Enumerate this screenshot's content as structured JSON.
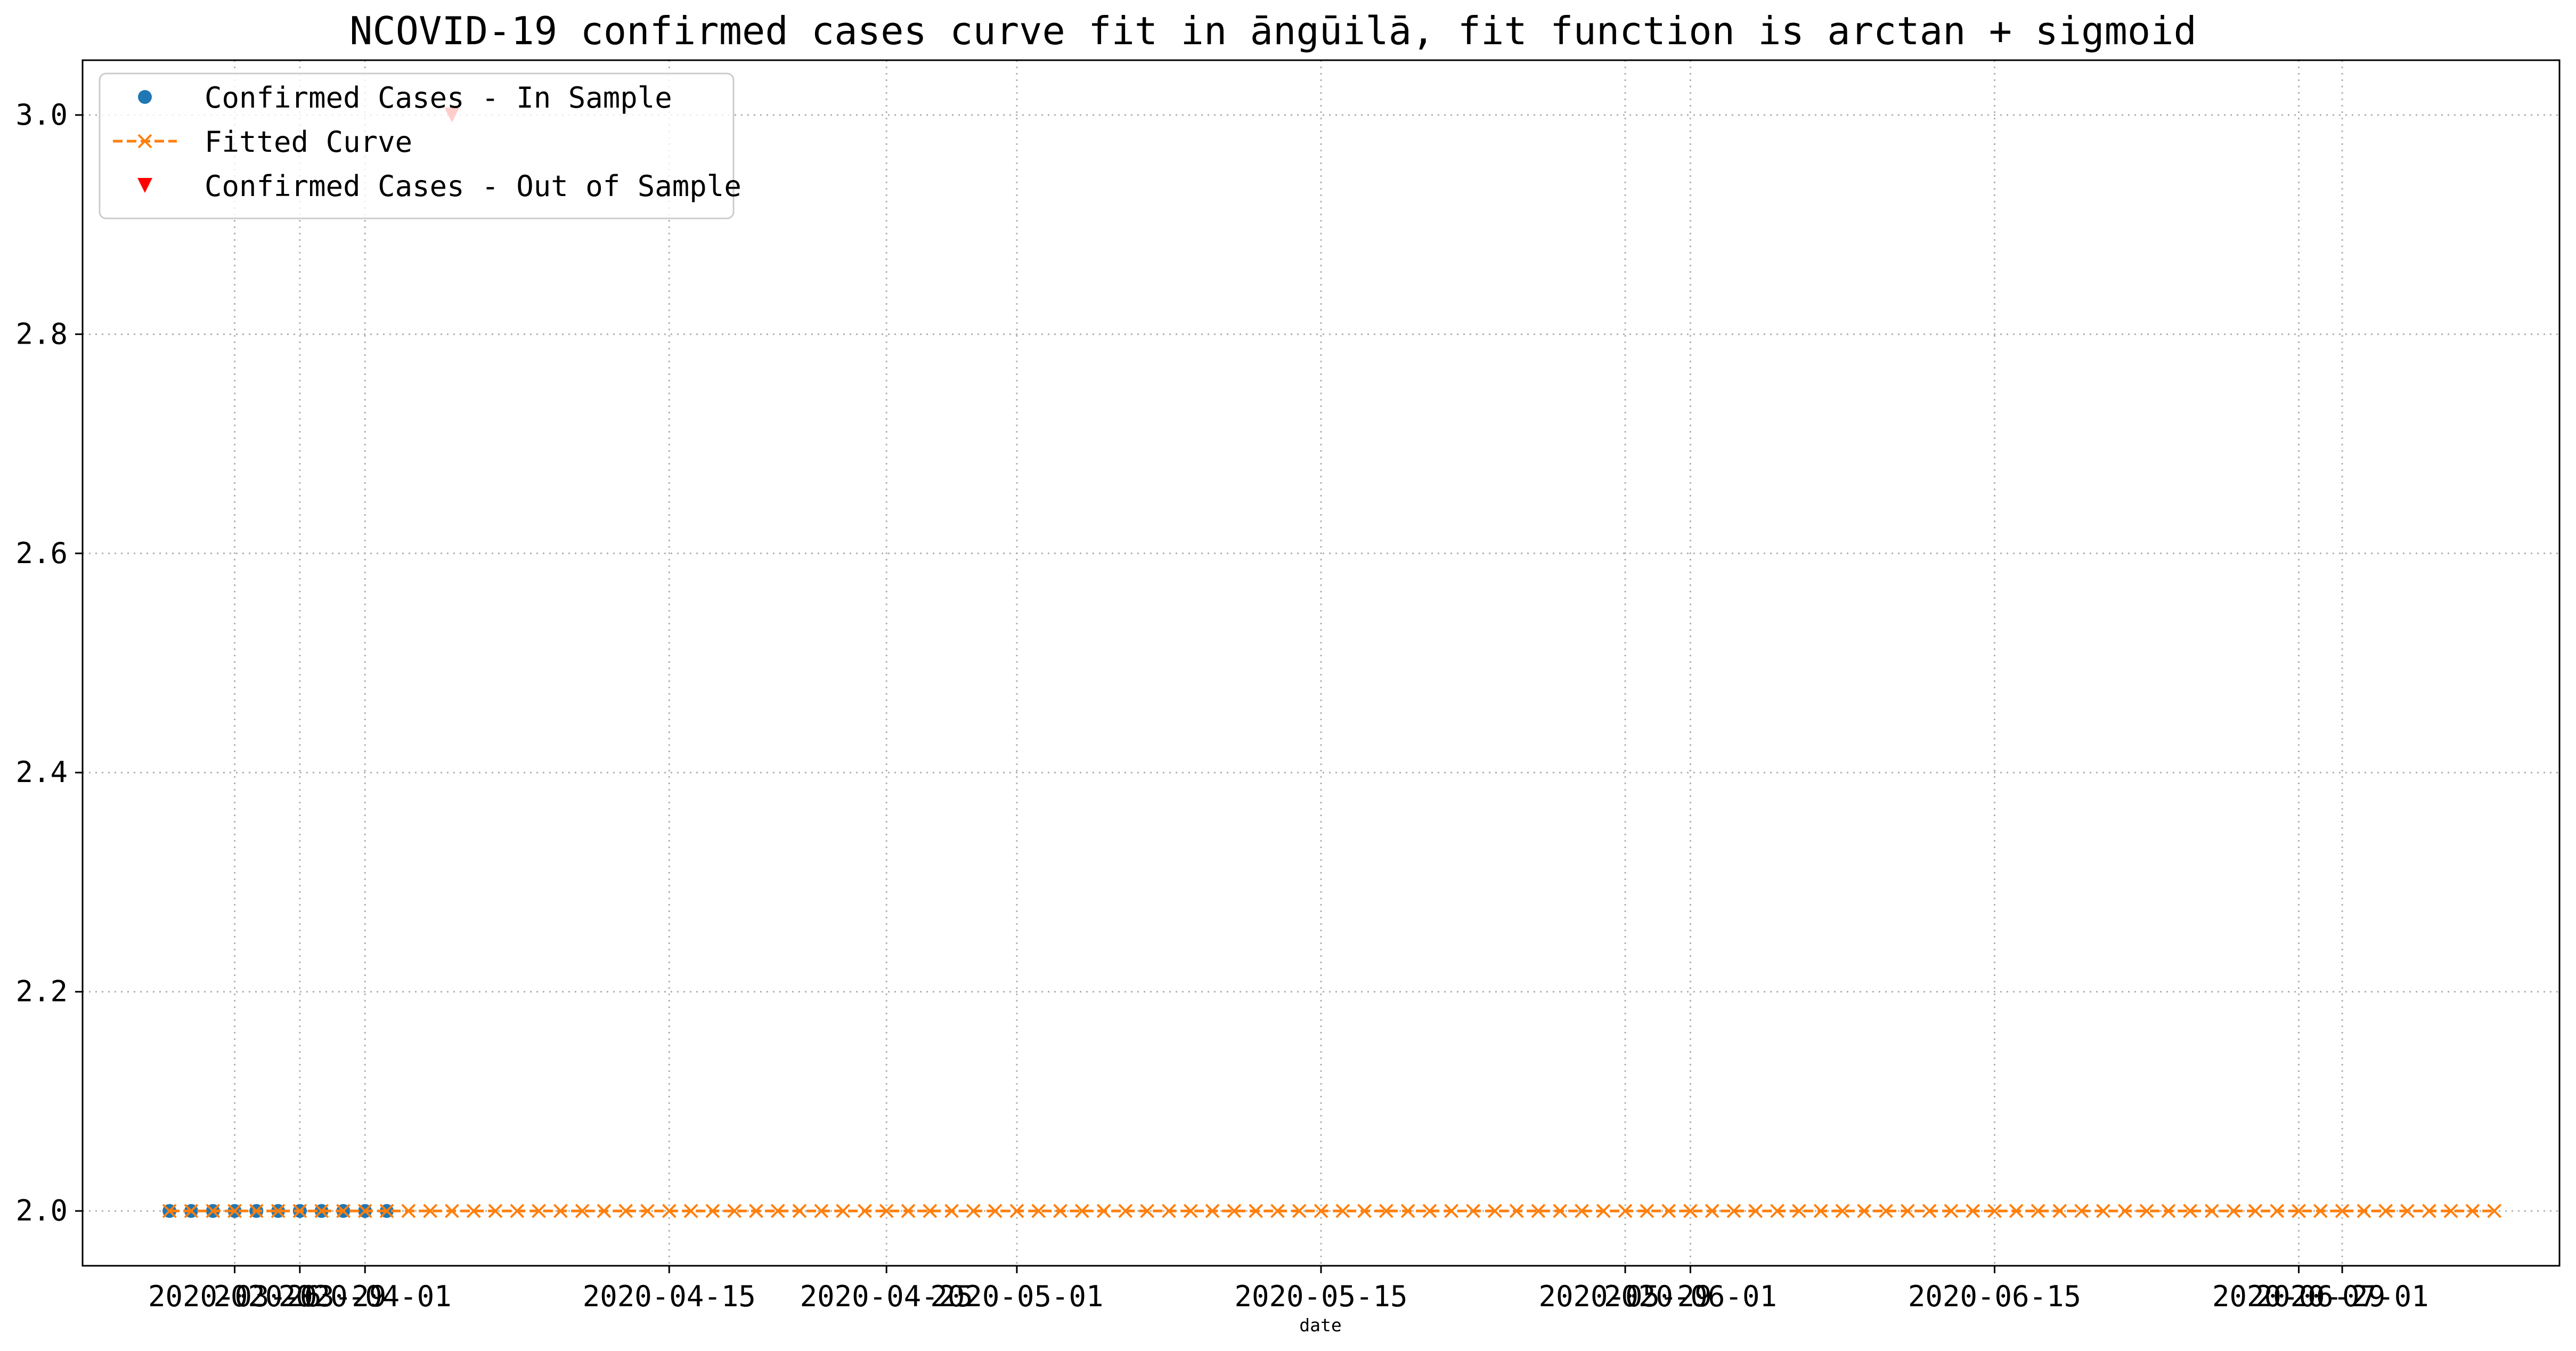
{
  "chart_data": {
    "type": "line",
    "title": "NCOVID-19 confirmed cases curve fit in āngūilā, fit function is arctan + sigmoid",
    "xlabel": "date",
    "ylabel": "",
    "grid": true,
    "legend_position": "top-left",
    "ylim": [
      1.95,
      3.05
    ],
    "xlim": [
      "2020-03-19",
      "2020-07-11"
    ],
    "yticks": [
      2.0,
      2.2,
      2.4,
      2.6,
      2.8,
      3.0
    ],
    "ytick_labels": [
      "2.0",
      "2.2",
      "2.4",
      "2.6",
      "2.8",
      "3.0"
    ],
    "xticks": [
      "2020-03-26",
      "2020-03-29",
      "2020-04-01",
      "2020-04-15",
      "2020-04-25",
      "2020-05-01",
      "2020-05-15",
      "2020-05-29",
      "2020-06-01",
      "2020-06-15",
      "2020-06-29",
      "2020-07-01"
    ],
    "xtick_labels": [
      "2020-03-26",
      "2020-03-29",
      "2020-04-01",
      "2020-04-15",
      "2020-04-25",
      "2020-05-01",
      "2020-05-15",
      "2020-05-29",
      "2020-06-01",
      "2020-06-15",
      "2020-06-29",
      "2020-07-01"
    ],
    "series": [
      {
        "name": "Confirmed Cases - In Sample",
        "marker": "circle",
        "color": "#1f77b4",
        "x": [
          "2020-03-23",
          "2020-03-24",
          "2020-03-25",
          "2020-03-26",
          "2020-03-27",
          "2020-03-28",
          "2020-03-29",
          "2020-03-30",
          "2020-03-31",
          "2020-04-01",
          "2020-04-02"
        ],
        "values": [
          2,
          2,
          2,
          2,
          2,
          2,
          2,
          2,
          2,
          2,
          2
        ]
      },
      {
        "name": "Fitted Curve",
        "marker": "x",
        "line_style": "dashed",
        "color": "#ff7f0e",
        "x_start": "2020-03-23",
        "x_end": "2020-07-08",
        "step_days": 1,
        "constant_value": 2.0
      },
      {
        "name": "Confirmed Cases - Out of Sample",
        "marker": "triangle-down",
        "color": "#ff0000",
        "x": [
          "2020-04-05"
        ],
        "values": [
          3
        ]
      }
    ]
  }
}
